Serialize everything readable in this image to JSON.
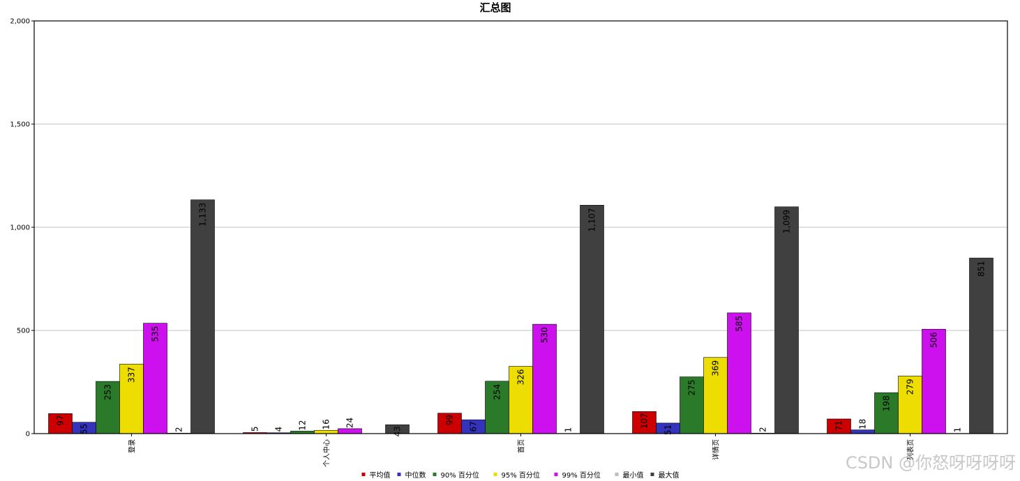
{
  "watermark": "CSDN @你怒呀呀呀呀",
  "chart_data": {
    "type": "bar",
    "title": "汇总图",
    "xlabel": "",
    "ylabel": "",
    "ylim": [
      0,
      2000
    ],
    "yticks": [
      0,
      500,
      1000,
      1500,
      2000
    ],
    "ytick_labels": [
      "0",
      "500",
      "1,000",
      "1,500",
      "2,000"
    ],
    "grid": true,
    "legend_position": "bottom",
    "categories": [
      "登录",
      "个人中心",
      "首页",
      "详情页",
      "列表页"
    ],
    "series": [
      {
        "name": "平均值",
        "color": "#cc0000",
        "values": [
          97,
          5,
          99,
          107,
          71
        ],
        "labels": [
          "97",
          "5",
          "99",
          "107",
          "71"
        ]
      },
      {
        "name": "中位数",
        "color": "#3333bb",
        "values": [
          55,
          4,
          67,
          51,
          18
        ],
        "labels": [
          "55",
          "4",
          "67",
          "51",
          "18"
        ]
      },
      {
        "name": "90% 百分位",
        "color": "#2a7a2a",
        "values": [
          253,
          12,
          254,
          275,
          198
        ],
        "labels": [
          "253",
          "12",
          "254",
          "275",
          "198"
        ]
      },
      {
        "name": "95% 百分位",
        "color": "#eedd00",
        "values": [
          337,
          16,
          326,
          369,
          279
        ],
        "labels": [
          "337",
          "16",
          "326",
          "369",
          "279"
        ]
      },
      {
        "name": "99% 百分位",
        "color": "#cc11ee",
        "values": [
          535,
          24,
          530,
          585,
          506
        ],
        "labels": [
          "535",
          "24",
          "530",
          "585",
          "506"
        ]
      },
      {
        "name": "最小值",
        "color": "#bbbbbb",
        "values": [
          2,
          0,
          1,
          2,
          1
        ],
        "labels": [
          "2",
          "",
          "1",
          "2",
          "1"
        ]
      },
      {
        "name": "最大值",
        "color": "#404040",
        "values": [
          1133,
          43,
          1107,
          1099,
          851
        ],
        "labels": [
          "1,133",
          "43",
          "1,107",
          "1,099",
          "851"
        ]
      }
    ]
  }
}
